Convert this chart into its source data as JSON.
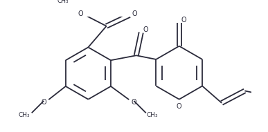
{
  "bg_color": "#ffffff",
  "line_color": "#2a2a3a",
  "line_width": 1.3,
  "figsize": [
    3.87,
    1.91
  ],
  "dpi": 100,
  "xlim": [
    0,
    387
  ],
  "ylim": [
    0,
    191
  ]
}
